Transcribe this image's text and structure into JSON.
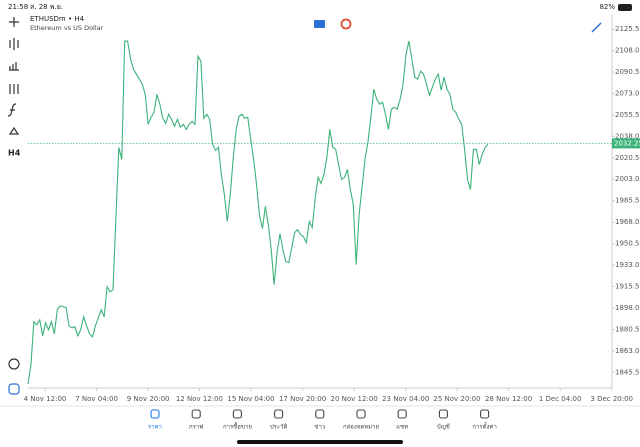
{
  "status_bar": {
    "time": "21:58",
    "date": "ส. 28 พ.ย.",
    "battery": "82%"
  },
  "toolbar": {
    "timeframe": "H4"
  },
  "chart_data": {
    "type": "line",
    "title": "ETHUSDm • H4",
    "subtitle": "Ethereum vs US Dollar",
    "color": "#3bb27a",
    "values": [
      1836.0,
      1851.5,
      1886.7,
      1884.2,
      1888.3,
      1875.3,
      1885.9,
      1880.2,
      1886.7,
      1876.9,
      1896.5,
      1899.8,
      1899.0,
      1898.2,
      1883.4,
      1881.8,
      1882.6,
      1875.3,
      1880.2,
      1890.8,
      1883.4,
      1876.9,
      1874.4,
      1883.4,
      1890.0,
      1896.5,
      1890.8,
      1915.3,
      1911.2,
      1912.9,
      1971.8,
      2029.0,
      2019.2,
      2115.7,
      2115.7,
      2101.0,
      2092.8,
      2088.7,
      2084.6,
      2080.5,
      2072.3,
      2047.8,
      2053.5,
      2057.6,
      2072.3,
      2064.2,
      2052.7,
      2048.6,
      2056.0,
      2051.9,
      2046.2,
      2051.9,
      2045.4,
      2047.8,
      2043.7,
      2047.8,
      2050.3,
      2047.8,
      2103.4,
      2099.3,
      2052.7,
      2056.0,
      2051.9,
      2031.5,
      2026.5,
      2029.0,
      2006.9,
      1990.6,
      1968.5,
      1989.7,
      2019.2,
      2042.9,
      2054.4,
      2056.0,
      2052.7,
      2053.5,
      2035.5,
      2019.2,
      1998.7,
      1973.4,
      1962.8,
      1980.8,
      1966.0,
      1945.6,
      1917.0,
      1943.1,
      1958.7,
      1945.6,
      1935.8,
      1935.0,
      1947.2,
      1959.5,
      1961.9,
      1957.9,
      1956.2,
      1951.3,
      1968.5,
      1963.6,
      1987.3,
      2004.5,
      1999.6,
      2006.9,
      2020.8,
      2043.7,
      2029.0,
      2027.4,
      2015.1,
      2002.8,
      2004.5,
      2011.0,
      1994.7,
      1982.4,
      1933.3,
      1974.2,
      1996.3,
      2019.2,
      2033.1,
      2053.5,
      2076.4,
      2068.3,
      2064.2,
      2065.8,
      2056.0,
      2043.7,
      2060.1,
      2061.7,
      2060.1,
      2068.3,
      2080.5,
      2105.1,
      2115.7,
      2101.0,
      2086.2,
      2084.6,
      2091.2,
      2088.7,
      2080.5,
      2071.5,
      2078.1,
      2084.6,
      2088.7,
      2075.6,
      2086.2,
      2076.4,
      2072.3,
      2060.1,
      2057.6,
      2051.9,
      2047.8,
      2027.4,
      2002.8,
      1994.7,
      2027.4,
      2027.4,
      2015.1,
      2023.3,
      2029.0,
      2031.5
    ],
    "xlim": [
      0,
      199.3
    ],
    "xticks": [
      {
        "value": 5.8,
        "label": "4 Nov 12:00"
      },
      {
        "value": 23.4,
        "label": "7 Nov 04:00"
      },
      {
        "value": 41.0,
        "label": "9 Nov 20:00"
      },
      {
        "value": 58.5,
        "label": "12 Nov 12:00"
      },
      {
        "value": 76.1,
        "label": "15 Nov 04:00"
      },
      {
        "value": 93.7,
        "label": "17 Nov 20:00"
      },
      {
        "value": 111.3,
        "label": "20 Nov 12:00"
      },
      {
        "value": 128.9,
        "label": "23 Nov 04:00"
      },
      {
        "value": 146.4,
        "label": "25 Nov 20:00"
      },
      {
        "value": 164.0,
        "label": "28 Nov 12:00"
      },
      {
        "value": 181.6,
        "label": "1 Dec 04:00"
      },
      {
        "value": 199.2,
        "label": "3 Dec 20:00"
      }
    ],
    "ylim": [
      1832.7,
      2137.8
    ],
    "yticks": [
      {
        "value": 2125.5,
        "label": "2125.50"
      },
      {
        "value": 2108,
        "label": "2108.00"
      },
      {
        "value": 2090.5,
        "label": "2090.50"
      },
      {
        "value": 2073,
        "label": "2073.00"
      },
      {
        "value": 2055.5,
        "label": "2055.50"
      },
      {
        "value": 2038,
        "label": "2038.00"
      },
      {
        "value": 2020.5,
        "label": "2020.50"
      },
      {
        "value": 2003,
        "label": "2003.00"
      },
      {
        "value": 1985.5,
        "label": "1985.50"
      },
      {
        "value": 1968,
        "label": "1968.00"
      },
      {
        "value": 1950.5,
        "label": "1950.50"
      },
      {
        "value": 1933,
        "label": "1933.00"
      },
      {
        "value": 1915.5,
        "label": "1915.50"
      },
      {
        "value": 1898,
        "label": "1898.00"
      },
      {
        "value": 1880.5,
        "label": "1880.50"
      },
      {
        "value": 1863,
        "label": "1863.00"
      },
      {
        "value": 1845.5,
        "label": "1845.50"
      }
    ],
    "current_price": 2032.25
  },
  "tab_bar": {
    "items": [
      "ราคา",
      "กราฟ",
      "การซื้อขาย",
      "ประวัติ",
      "ข่าว",
      "กล่องจดหมาย",
      "แชท",
      "บัญชี",
      "การตั้งค่า"
    ],
    "active": 0,
    "active_color": "#1a73e8"
  }
}
